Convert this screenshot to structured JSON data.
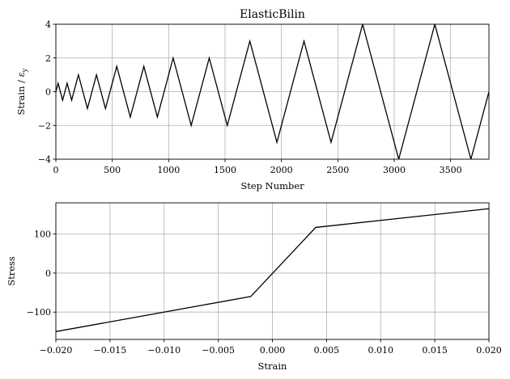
{
  "chart_data": [
    {
      "type": "line",
      "title": "ElasticBilin",
      "xlabel": "Step Number",
      "ylabel": "Strain / ε_y",
      "xlim": [
        0,
        3840
      ],
      "ylim": [
        -4,
        4
      ],
      "xticks": [
        0,
        500,
        1000,
        1500,
        2000,
        2500,
        3000,
        3500
      ],
      "yticks": [
        -4,
        -2,
        0,
        2,
        4
      ],
      "xtick_labels": [
        "0",
        "500",
        "1000",
        "1500",
        "2000",
        "2500",
        "3000",
        "3500"
      ],
      "ytick_labels": [
        "−4",
        "−2",
        "0",
        "2",
        "4"
      ],
      "grid": true,
      "series": [
        {
          "x": [
            0,
            20,
            60,
            100,
            140,
            200,
            280,
            360,
            440,
            540,
            660,
            780,
            900,
            1040,
            1200,
            1360,
            1520,
            1720,
            1960,
            2200,
            2440,
            2720,
            3040,
            3360,
            3680,
            3840
          ],
          "y": [
            0,
            0.5,
            -0.5,
            0.5,
            -0.5,
            1,
            -1,
            1,
            -1,
            1.5,
            -1.5,
            1.5,
            -1.5,
            2,
            -2,
            2,
            -2,
            3,
            -3,
            3,
            -3,
            4,
            -4,
            4,
            -4,
            0
          ]
        }
      ]
    },
    {
      "type": "line",
      "title": "",
      "xlabel": "Strain",
      "ylabel": "Stress",
      "xlim": [
        -0.02,
        0.02
      ],
      "ylim": [
        -170,
        180
      ],
      "xticks": [
        -0.02,
        -0.015,
        -0.01,
        -0.005,
        0,
        0.005,
        0.01,
        0.015,
        0.02
      ],
      "yticks": [
        -100,
        0,
        100
      ],
      "xtick_labels": [
        "−0.020",
        "−0.015",
        "−0.010",
        "−0.005",
        "0.000",
        "0.005",
        "0.010",
        "0.015",
        "0.020"
      ],
      "ytick_labels": [
        "−100",
        "0",
        "100"
      ],
      "grid": true,
      "series": [
        {
          "x": [
            -0.02,
            -0.002,
            0.004,
            0.02
          ],
          "y": [
            -150,
            -60,
            117,
            165
          ]
        }
      ]
    }
  ]
}
